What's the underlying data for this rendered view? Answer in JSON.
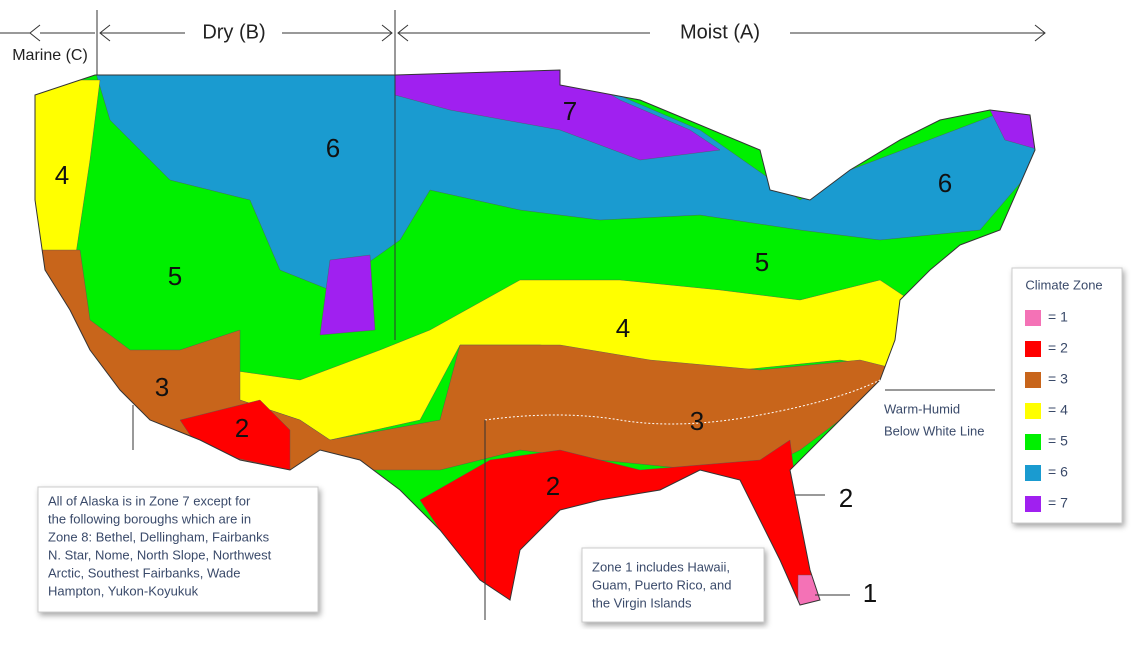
{
  "header": {
    "marine": "Marine (C)",
    "dry": "Dry (B)",
    "moist": "Moist (A)"
  },
  "map_labels": [
    "4",
    "5",
    "6",
    "7",
    "6",
    "5",
    "4",
    "3",
    "3",
    "2",
    "2",
    "2",
    "1"
  ],
  "annotation": {
    "lines": [
      "Warm-Humid",
      "Below White Line"
    ]
  },
  "legend": {
    "title": "Climate Zone",
    "items": [
      {
        "label": "= 1",
        "color": "#f472b6"
      },
      {
        "label": "= 2",
        "color": "#ff0000"
      },
      {
        "label": "= 3",
        "color": "#c8651b"
      },
      {
        "label": "= 4",
        "color": "#ffff00"
      },
      {
        "label": "= 5",
        "color": "#00f000"
      },
      {
        "label": "= 6",
        "color": "#1a9bd0"
      },
      {
        "label": "= 7",
        "color": "#a020f0"
      }
    ]
  },
  "notes": {
    "alaska": [
      "All of Alaska is in Zone 7 except for",
      "the following boroughs which are in",
      "Zone 8: Bethel, Dellingham, Fairbanks",
      "N. Star, Nome, North Slope, Northwest",
      "Arctic, Southest Fairbanks, Wade",
      "Hampton, Yukon-Koyukuk"
    ],
    "zone1": [
      "Zone 1 includes Hawaii,",
      "Guam, Puerto Rico, and",
      "the Virgin Islands"
    ]
  }
}
